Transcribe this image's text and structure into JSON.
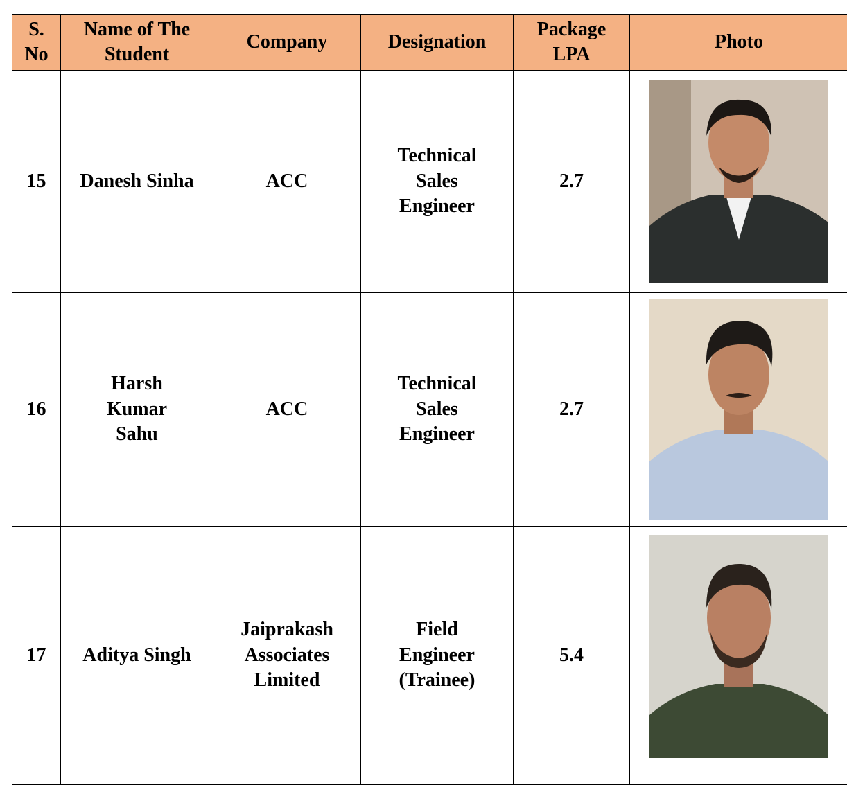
{
  "table": {
    "header": [
      "S. No",
      "Name of The Student",
      "Company",
      "Designation",
      "Package LPA",
      "Photo"
    ],
    "rows": [
      [
        15,
        "Danesh Sinha",
        "ACC",
        "Technical Sales Engineer",
        2.7
      ],
      [
        16,
        "Harsh Kumar Sahu",
        "ACC",
        "Technical Sales Engineer",
        2.7
      ],
      [
        17,
        "Aditya Singh",
        "Jaiprakash Associates Limited",
        "Field Engineer (Trainee)",
        5.4
      ]
    ]
  }
}
